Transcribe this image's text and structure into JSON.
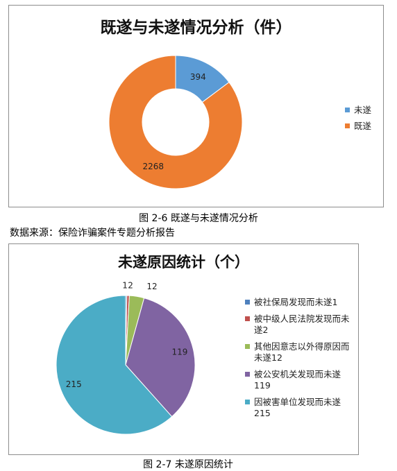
{
  "chart_data": [
    {
      "type": "pie",
      "variant": "donut",
      "title": "既遂与未遂情况分析（件）",
      "categories": [
        "未遂",
        "既遂"
      ],
      "values": [
        394,
        2268
      ],
      "colors": [
        "#5b9bd5",
        "#ed7d31"
      ],
      "data_labels": [
        "394",
        "2268"
      ],
      "legend": "right"
    },
    {
      "type": "pie",
      "title": "未遂原因统计（个）",
      "categories": [
        "被社保局发现而未遂1",
        "被中级人民法院发现而未遂2",
        "其他因意志以外得原因而未遂12",
        "被公安机关发现而未遂119",
        "因被害单位发现而未遂215"
      ],
      "values": [
        1,
        2,
        12,
        119,
        215
      ],
      "colors": [
        "#4f81bd",
        "#c0504d",
        "#9bbb59",
        "#8064a2",
        "#4bacc6"
      ],
      "data_labels": [
        "1",
        "2",
        "12",
        "119",
        "215"
      ],
      "legend": "right"
    }
  ],
  "captions": {
    "figure1": "图 2-6 既遂与未遂情况分析",
    "source": "数据来源：保险诈骗案件专题分析报告",
    "figure2": "图 2-7 未遂原因统计"
  }
}
